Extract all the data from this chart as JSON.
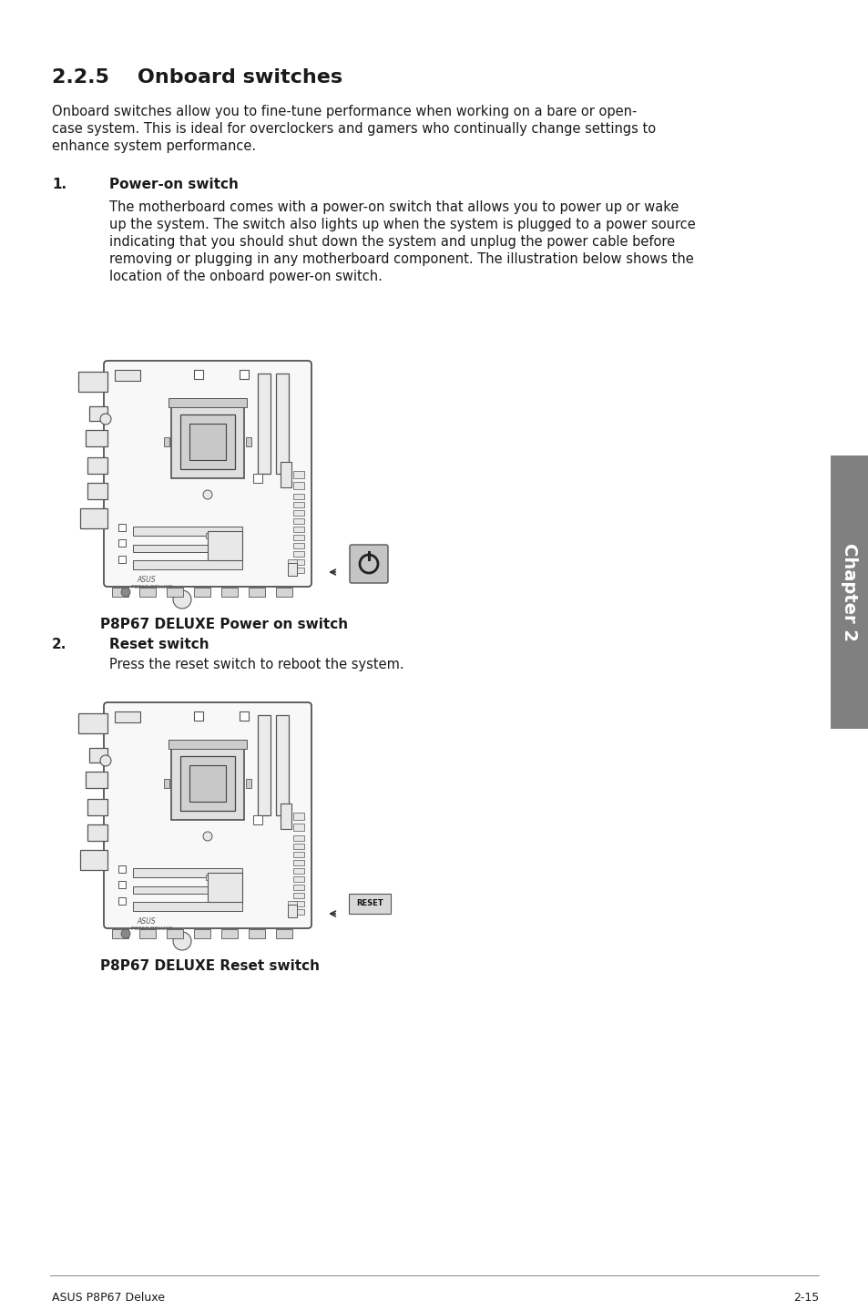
{
  "title": "2.2.5    Onboard switches",
  "intro_line1": "Onboard switches allow you to fine-tune performance when working on a bare or open-",
  "intro_line2": "case system. This is ideal for overclockers and gamers who continually change settings to",
  "intro_line3": "enhance system performance.",
  "s1_num": "1.",
  "s1_title": "Power-on switch",
  "s1_body_lines": [
    "The motherboard comes with a power-on switch that allows you to power up or wake",
    "up the system. The switch also lights up when the system is plugged to a power source",
    "indicating that you should shut down the system and unplug the power cable before",
    "removing or plugging in any motherboard component. The illustration below shows the",
    "location of the onboard power-on switch."
  ],
  "img1_caption": "P8P67 DELUXE Power on switch",
  "s2_num": "2.",
  "s2_title": "Reset switch",
  "s2_body": "Press the reset switch to reboot the system.",
  "img2_caption": "P8P67 DELUXE Reset switch",
  "footer_left": "ASUS P8P67 Deluxe",
  "footer_right": "2-15",
  "chapter_label": "Chapter 2",
  "bg_color": "#ffffff",
  "text_color": "#1a1a1a",
  "sidebar_color": "#808080",
  "board_fill": "#f8f8f8",
  "board_edge": "#444444",
  "comp_fill": "#e8e8e8",
  "comp_edge": "#555555"
}
